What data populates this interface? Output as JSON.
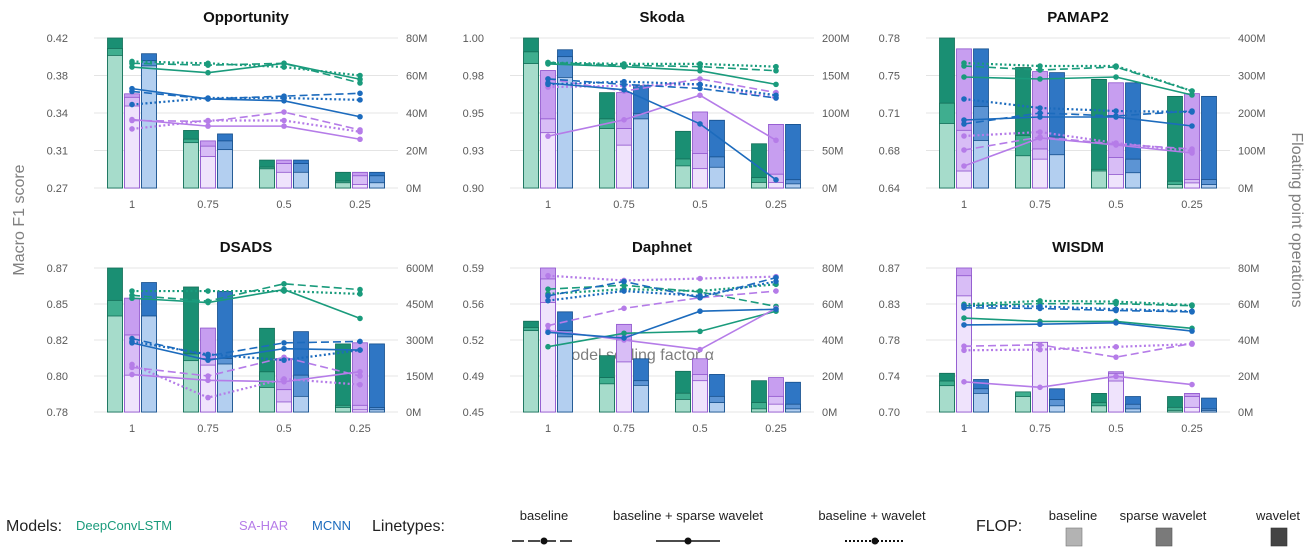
{
  "figure": {
    "y_left_label": "Macro F1 score",
    "y_right_label": "Floating point operations",
    "x_label": "Model scaling factor α"
  },
  "legend": {
    "models_label": "Models:",
    "models": [
      {
        "name": "DeepConvLSTM",
        "color": "#1a9b7c"
      },
      {
        "name": "SA-HAR",
        "color": "#b57ce8"
      },
      {
        "name": "MCNN",
        "color": "#1c6bbd"
      }
    ],
    "linetypes_label": "Linetypes:",
    "linetypes": [
      "baseline",
      "baseline + sparse wavelet",
      "baseline + wavelet"
    ],
    "flop_label": "FLOP:",
    "flop_types": [
      {
        "name": "baseline",
        "color": "#b3b3b3"
      },
      {
        "name": "sparse wavelet",
        "color": "#7a7a7a"
      },
      {
        "name": "wavelet",
        "color": "#444444"
      }
    ]
  },
  "chart_data": [
    {
      "type": "bar+line",
      "title": "Opportunity",
      "x": [
        "1",
        "0.75",
        "0.5",
        "0.25"
      ],
      "y_ticks": [
        "0.42",
        "0.38",
        "0.34",
        "0.31",
        "0.27"
      ],
      "ylim": [
        0.27,
        0.43
      ],
      "y2_ticks": [
        "80M",
        "60M",
        "40M",
        "20M",
        "0M"
      ],
      "y2lim": [
        0,
        86
      ],
      "flops": {
        "DeepConvLSTM": {
          "baseline": [
            76,
            26,
            11,
            3
          ],
          "sparse_wavelet": [
            80,
            28,
            12,
            4
          ],
          "wavelet": [
            86,
            33,
            16,
            9
          ]
        },
        "SA-HAR": {
          "baseline": [
            47,
            18,
            9,
            2
          ],
          "sparse_wavelet": [
            52,
            24,
            14,
            7
          ],
          "wavelet": [
            54,
            27,
            16,
            9
          ]
        },
        "MCNN": {
          "baseline": [
            70,
            22,
            9,
            3
          ],
          "sparse_wavelet": [
            73,
            27,
            14,
            7
          ],
          "wavelet": [
            77,
            31,
            16,
            9
          ]
        }
      },
      "f1": {
        "DeepConvLSTM": {
          "baseline": [
            0.403,
            0.401,
            0.403,
            0.382
          ],
          "sparse_wavelet": [
            0.399,
            0.393,
            0.403,
            0.386
          ],
          "wavelet": [
            0.405,
            0.403,
            0.399,
            0.39
          ]
        },
        "SA-HAR": {
          "baseline": [
            0.342,
            0.341,
            0.351,
            0.332
          ],
          "sparse_wavelet": [
            0.343,
            0.336,
            0.336,
            0.322
          ],
          "wavelet": [
            0.333,
            0.342,
            0.342,
            0.33
          ]
        },
        "MCNN": {
          "baseline": [
            0.373,
            0.365,
            0.368,
            0.371
          ],
          "sparse_wavelet": [
            0.376,
            0.365,
            0.363,
            0.346
          ],
          "wavelet": [
            0.359,
            0.366,
            0.366,
            0.364
          ]
        }
      }
    },
    {
      "type": "bar+line",
      "title": "Skoda",
      "x": [
        "1",
        "0.75",
        "0.5",
        "0.25"
      ],
      "y_ticks": [
        "1.00",
        "0.98",
        "0.95",
        "0.93",
        "0.90"
      ],
      "ylim": [
        0.9,
        1.01
      ],
      "y2_ticks": [
        "200M",
        "150M",
        "100M",
        "50M",
        "0M"
      ],
      "y2lim": [
        0,
        217
      ],
      "flops": {
        "DeepConvLSTM": {
          "baseline": [
            180,
            86,
            32,
            8
          ],
          "sparse_wavelet": [
            197,
            100,
            42,
            15
          ],
          "wavelet": [
            217,
            138,
            82,
            64
          ]
        },
        "SA-HAR": {
          "baseline": [
            80,
            62,
            28,
            8
          ],
          "sparse_wavelet": [
            100,
            86,
            50,
            20
          ],
          "wavelet": [
            170,
            138,
            110,
            92
          ]
        },
        "MCNN": {
          "baseline": [
            160,
            100,
            30,
            6
          ],
          "sparse_wavelet": [
            190,
            108,
            45,
            12
          ],
          "wavelet": [
            200,
            148,
            98,
            92
          ]
        }
      },
      "f1": {
        "DeepConvLSTM": {
          "baseline": [
            0.992,
            0.99,
            0.989,
            0.986
          ],
          "sparse_wavelet": [
            0.991,
            0.989,
            0.986,
            0.976
          ],
          "wavelet": [
            0.992,
            0.991,
            0.991,
            0.989
          ]
        },
        "SA-HAR": {
          "baseline": [
            0.98,
            0.971,
            0.98,
            0.97
          ],
          "sparse_wavelet": [
            0.938,
            0.95,
            0.968,
            0.935
          ],
          "wavelet": [
            0.974,
            0.975,
            0.976,
            0.966
          ]
        },
        "MCNN": {
          "baseline": [
            0.98,
            0.976,
            0.973,
            0.966
          ],
          "sparse_wavelet": [
            0.977,
            0.972,
            0.947,
            0.906
          ],
          "wavelet": [
            0.976,
            0.978,
            0.976,
            0.968
          ]
        }
      }
    },
    {
      "type": "bar+line",
      "title": "PAMAP2",
      "x": [
        "1",
        "0.75",
        "0.5",
        "0.25"
      ],
      "y_ticks": [
        "0.78",
        "0.75",
        "0.71",
        "0.68",
        "0.64"
      ],
      "ylim": [
        0.64,
        0.79
      ],
      "y2_ticks": [
        "400M",
        "300M",
        "200M",
        "100M",
        "0M"
      ],
      "y2lim": [
        0,
        442
      ],
      "flops": {
        "DeepConvLSTM": {
          "baseline": [
            190,
            95,
            50,
            10
          ],
          "sparse_wavelet": [
            250,
            155,
            55,
            20
          ],
          "wavelet": [
            442,
            355,
            320,
            270
          ]
        },
        "SA-HAR": {
          "baseline": [
            50,
            85,
            40,
            15
          ],
          "sparse_wavelet": [
            170,
            115,
            90,
            25
          ],
          "wavelet": [
            410,
            343,
            310,
            278
          ]
        },
        "MCNN": {
          "baseline": [
            140,
            98,
            45,
            10
          ],
          "sparse_wavelet": [
            240,
            150,
            85,
            25
          ],
          "wavelet": [
            410,
            340,
            310,
            270
          ]
        }
      },
      "f1": {
        "DeepConvLSTM": {
          "baseline": [
            0.762,
            0.758,
            0.761,
            0.737
          ],
          "sparse_wavelet": [
            0.751,
            0.749,
            0.751,
            0.733
          ],
          "wavelet": [
            0.765,
            0.762,
            0.762,
            0.737
          ]
        },
        "SA-HAR": {
          "baseline": [
            0.678,
            0.691,
            0.684,
            0.679
          ],
          "sparse_wavelet": [
            0.662,
            0.69,
            0.683,
            0.675
          ],
          "wavelet": [
            0.692,
            0.696,
            0.685,
            0.677
          ]
        },
        "MCNN": {
          "baseline": [
            0.704,
            0.715,
            0.712,
            0.717
          ],
          "sparse_wavelet": [
            0.708,
            0.711,
            0.711,
            0.702
          ],
          "wavelet": [
            0.729,
            0.72,
            0.717,
            0.716
          ]
        }
      }
    },
    {
      "type": "bar+line",
      "title": "DSADS",
      "x": [
        "1",
        "0.75",
        "0.5",
        "0.25"
      ],
      "y_ticks": [
        "0.87",
        "0.85",
        "0.82",
        "0.80",
        "0.78"
      ],
      "ylim": [
        0.78,
        0.88
      ],
      "y2_ticks": [
        "600M",
        "450M",
        "300M",
        "150M",
        "0M"
      ],
      "y2lim": [
        0,
        645
      ],
      "flops": {
        "DeepConvLSTM": {
          "baseline": [
            430,
            230,
            110,
            20
          ],
          "sparse_wavelet": [
            500,
            260,
            180,
            30
          ],
          "wavelet": [
            645,
            560,
            375,
            305
          ]
        },
        "SA-HAR": {
          "baseline": [
            165,
            210,
            45,
            10
          ],
          "sparse_wavelet": [
            345,
            240,
            100,
            30
          ],
          "wavelet": [
            510,
            376,
            240,
            310
          ]
        },
        "MCNN": {
          "baseline": [
            430,
            215,
            70,
            10
          ],
          "sparse_wavelet": [
            430,
            240,
            165,
            20
          ],
          "wavelet": [
            580,
            540,
            360,
            305
          ]
        }
      },
      "f1": {
        "DeepConvLSTM": {
          "baseline": [
            0.861,
            0.857,
            0.869,
            0.865
          ],
          "sparse_wavelet": [
            0.859,
            0.856,
            0.865,
            0.845
          ],
          "wavelet": [
            0.864,
            0.864,
            0.864,
            0.862
          ]
        },
        "SA-HAR": {
          "baseline": [
            0.811,
            0.805,
            0.818,
            0.805
          ],
          "sparse_wavelet": [
            0.806,
            0.802,
            0.801,
            0.808
          ],
          "wavelet": [
            0.813,
            0.79,
            0.803,
            0.799
          ]
        },
        "MCNN": {
          "baseline": [
            0.831,
            0.819,
            0.828,
            0.829
          ],
          "sparse_wavelet": [
            0.828,
            0.816,
            0.824,
            0.823
          ],
          "wavelet": [
            0.829,
            0.82,
            0.816,
            0.823
          ]
        }
      }
    },
    {
      "type": "bar+line",
      "title": "Daphnet",
      "x": [
        "1",
        "0.75",
        "0.5",
        "0.25"
      ],
      "y_ticks": [
        "0.59",
        "0.56",
        "0.52",
        "0.49",
        "0.45"
      ],
      "ylim": [
        0.45,
        0.6
      ],
      "y2_ticks": [
        "80M",
        "60M",
        "40M",
        "20M",
        "0M"
      ],
      "y2lim": [
        0,
        92
      ],
      "flops": {
        "DeepConvLSTM": {
          "baseline": [
            52,
            18,
            8,
            2
          ],
          "sparse_wavelet": [
            54,
            22,
            12,
            6
          ],
          "wavelet": [
            58,
            36,
            26,
            20
          ]
        },
        "SA-HAR": {
          "baseline": [
            70,
            32,
            20,
            5
          ],
          "sparse_wavelet": [
            85,
            46,
            24,
            10
          ],
          "wavelet": [
            92,
            56,
            34,
            22
          ]
        },
        "MCNN": {
          "baseline": [
            48,
            17,
            6,
            2
          ],
          "sparse_wavelet": [
            52,
            20,
            10,
            5
          ],
          "wavelet": [
            64,
            34,
            24,
            19
          ]
        }
      },
      "f1": {
        "DeepConvLSTM": {
          "baseline": [
            0.578,
            0.582,
            0.575,
            0.56
          ],
          "sparse_wavelet": [
            0.518,
            0.532,
            0.534,
            0.555
          ],
          "wavelet": [
            0.573,
            0.578,
            0.576,
            0.583
          ]
        },
        "SA-HAR": {
          "baseline": [
            0.54,
            0.558,
            0.569,
            0.576
          ],
          "sparse_wavelet": [
            0.535,
            0.525,
            0.515,
            0.558
          ],
          "wavelet": [
            0.592,
            0.587,
            0.589,
            0.591
          ]
        },
        "MCNN": {
          "baseline": [
            0.571,
            0.586,
            0.569,
            0.59
          ],
          "sparse_wavelet": [
            0.533,
            0.527,
            0.555,
            0.557
          ],
          "wavelet": [
            0.566,
            0.576,
            0.571,
            0.586
          ]
        }
      }
    },
    {
      "type": "bar+line",
      "title": "WISDM",
      "x": [
        "1",
        "0.75",
        "0.5",
        "0.25"
      ],
      "y_ticks": [
        "0.87",
        "0.83",
        "0.78",
        "0.74",
        "0.70"
      ],
      "ylim": [
        0.7,
        0.91
      ],
      "y2_ticks": [
        "80M",
        "60M",
        "40M",
        "20M",
        "0M"
      ],
      "y2lim": [
        0,
        93
      ],
      "flops": {
        "DeepConvLSTM": {
          "baseline": [
            17,
            10,
            4,
            1
          ],
          "sparse_wavelet": [
            20,
            13,
            6,
            3
          ],
          "wavelet": [
            25,
            12,
            12,
            10
          ]
        },
        "SA-HAR": {
          "baseline": [
            75,
            45,
            20,
            3
          ],
          "sparse_wavelet": [
            88,
            42,
            25,
            10
          ],
          "wavelet": [
            93,
            45,
            26,
            12
          ]
        },
        "MCNN": {
          "baseline": [
            12,
            4,
            2,
            1
          ],
          "sparse_wavelet": [
            15,
            8,
            5,
            2
          ],
          "wavelet": [
            21,
            15,
            10,
            9
          ]
        }
      },
      "f1": {
        "DeepConvLSTM": {
          "baseline": [
            0.855,
            0.858,
            0.858,
            0.855
          ],
          "sparse_wavelet": [
            0.837,
            0.832,
            0.832,
            0.822
          ],
          "wavelet": [
            0.857,
            0.862,
            0.861,
            0.856
          ]
        },
        "SA-HAR": {
          "baseline": [
            0.796,
            0.798,
            0.78,
            0.8
          ],
          "sparse_wavelet": [
            0.744,
            0.736,
            0.752,
            0.74
          ],
          "wavelet": [
            0.79,
            0.791,
            0.795,
            0.799
          ]
        },
        "MCNN": {
          "baseline": [
            0.852,
            0.851,
            0.848,
            0.846
          ],
          "sparse_wavelet": [
            0.827,
            0.828,
            0.83,
            0.818
          ],
          "wavelet": [
            0.855,
            0.854,
            0.85,
            0.847
          ]
        }
      }
    }
  ]
}
